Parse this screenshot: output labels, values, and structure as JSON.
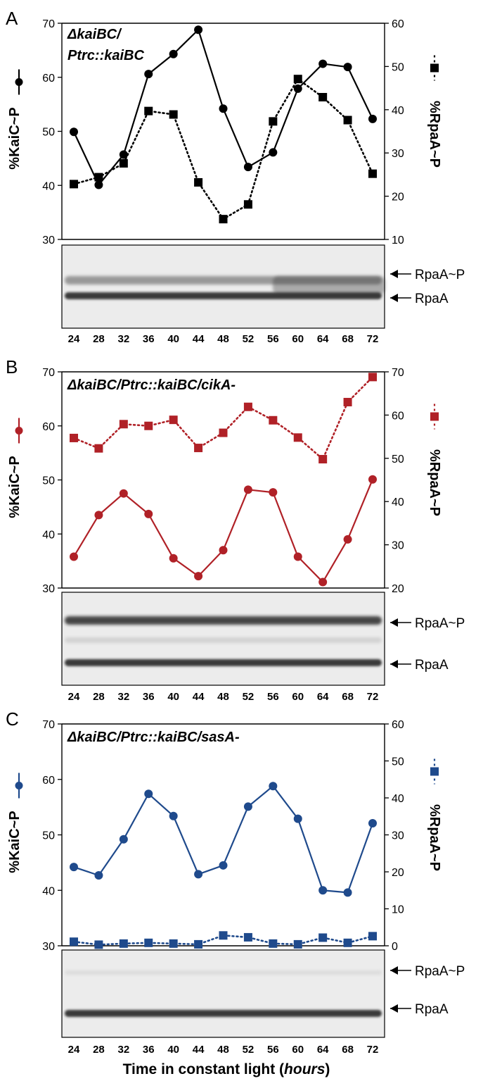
{
  "chart_data": [
    {
      "type": "line",
      "panel_letter": "A",
      "strain_label_line1": "ΔkaiBC/",
      "strain_label_line2": "Ptrc::kaiBC",
      "color": "#000000",
      "x": [
        24,
        28,
        32,
        36,
        40,
        44,
        48,
        52,
        56,
        60,
        64,
        68,
        72
      ],
      "left_axis": {
        "label": "%KaiC~P",
        "ylim": [
          30,
          70
        ],
        "ticks": [
          30,
          40,
          50,
          60,
          70
        ]
      },
      "right_axis": {
        "label": "%RpaA~P",
        "ylim": [
          10,
          60
        ],
        "ticks": [
          10,
          20,
          30,
          40,
          50,
          60
        ]
      },
      "series": [
        {
          "axis": "left",
          "style": "solid-circle",
          "values": [
            49.9,
            40.1,
            45.7,
            60.6,
            64.3,
            68.8,
            54.2,
            43.4,
            46.1,
            57.9,
            62.5,
            61.9,
            52.3
          ]
        },
        {
          "axis": "right",
          "style": "dotted-square",
          "values": [
            22.8,
            24.4,
            27.6,
            39.7,
            38.9,
            23.2,
            14.7,
            18.1,
            37.3,
            47.1,
            42.9,
            37.6,
            25.2
          ]
        }
      ],
      "blot_ticks": [
        "24",
        "28",
        "32",
        "36",
        "40",
        "44",
        "48",
        "52",
        "56",
        "60",
        "64",
        "68",
        "72"
      ],
      "blot_labels": [
        "RpaA~P",
        "RpaA"
      ]
    },
    {
      "type": "line",
      "panel_letter": "B",
      "strain_label_line1": "ΔkaiBC/Ptrc::kaiBC/cikA-",
      "strain_label_line2": "",
      "color": "#b02127",
      "x": [
        24,
        28,
        32,
        36,
        40,
        44,
        48,
        52,
        56,
        60,
        64,
        68,
        72
      ],
      "left_axis": {
        "label": "%KaiC~P",
        "ylim": [
          30,
          70
        ],
        "ticks": [
          30,
          40,
          50,
          60,
          70
        ]
      },
      "right_axis": {
        "label": "%RpaA~P",
        "ylim": [
          20,
          70
        ],
        "ticks": [
          20,
          30,
          40,
          50,
          60,
          70
        ]
      },
      "series": [
        {
          "axis": "left",
          "style": "solid-circle",
          "values": [
            35.8,
            43.5,
            47.5,
            43.7,
            35.5,
            32.2,
            37.0,
            48.2,
            47.7,
            35.8,
            31.1,
            39.0,
            50.1
          ]
        },
        {
          "axis": "right",
          "style": "dotted-square",
          "values": [
            54.7,
            52.3,
            57.9,
            57.5,
            58.9,
            52.4,
            55.9,
            61.9,
            58.8,
            54.8,
            49.8,
            63.0,
            68.8
          ]
        }
      ],
      "blot_ticks": [
        "24",
        "28",
        "32",
        "36",
        "40",
        "44",
        "48",
        "52",
        "56",
        "60",
        "64",
        "68",
        "72"
      ],
      "blot_labels": [
        "RpaA~P",
        "RpaA"
      ]
    },
    {
      "type": "line",
      "panel_letter": "C",
      "strain_label_line1": "ΔkaiBC/Ptrc::kaiBC/sasA-",
      "strain_label_line2": "",
      "color": "#1f4a8c",
      "x": [
        24,
        28,
        32,
        36,
        40,
        44,
        48,
        52,
        56,
        60,
        64,
        68,
        72
      ],
      "left_axis": {
        "label": "%KaiC~P",
        "ylim": [
          30,
          70
        ],
        "ticks": [
          30,
          40,
          50,
          60,
          70
        ]
      },
      "right_axis": {
        "label": "%RpaA~P",
        "ylim": [
          0,
          60
        ],
        "ticks": [
          0,
          10,
          20,
          30,
          40,
          50,
          60
        ]
      },
      "series": [
        {
          "axis": "left",
          "style": "solid-circle",
          "values": [
            44.2,
            42.7,
            49.2,
            57.4,
            53.4,
            42.9,
            44.5,
            55.1,
            58.8,
            52.9,
            40.0,
            39.6,
            52.1
          ]
        },
        {
          "axis": "right",
          "style": "dotted-square",
          "values": [
            1.1,
            0.3,
            0.6,
            0.8,
            0.6,
            0.4,
            2.8,
            2.3,
            0.6,
            0.4,
            2.2,
            0.8,
            2.6
          ]
        }
      ],
      "blot_ticks": [
        "24",
        "28",
        "32",
        "36",
        "40",
        "44",
        "48",
        "52",
        "56",
        "60",
        "64",
        "68",
        "72"
      ],
      "blot_labels": [
        "RpaA~P",
        "RpaA"
      ]
    }
  ],
  "x_axis_title_pre": "Time in constant light (",
  "x_axis_title_italic": "hours",
  "x_axis_title_post": ")"
}
